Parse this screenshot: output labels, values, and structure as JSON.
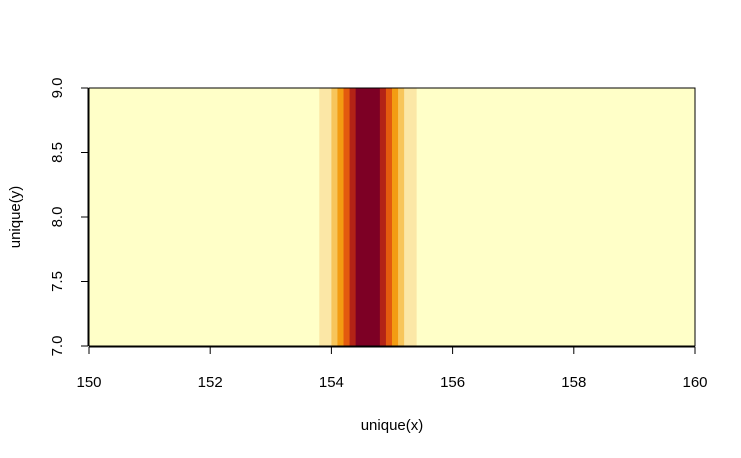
{
  "chart_data": {
    "type": "heatmap",
    "title": "",
    "xlabel": "unique(x)",
    "ylabel": "unique(y)",
    "xlim": [
      150,
      160
    ],
    "ylim": [
      7,
      9
    ],
    "x_ticks": [
      "150",
      "152",
      "154",
      "156",
      "158",
      "160"
    ],
    "y_ticks": [
      "7.0",
      "7.5",
      "8.0",
      "8.5",
      "9.0"
    ],
    "grid": false,
    "legend": "none",
    "background_color": "#FFFFC8",
    "bands": [
      {
        "x0": 153.8,
        "x1": 154.0,
        "color": "#FBE7A6"
      },
      {
        "x0": 154.0,
        "x1": 154.1,
        "color": "#F7C55A"
      },
      {
        "x0": 154.1,
        "x1": 154.2,
        "color": "#F39C12"
      },
      {
        "x0": 154.2,
        "x1": 154.3,
        "color": "#E35A0E"
      },
      {
        "x0": 154.3,
        "x1": 154.4,
        "color": "#B32316"
      },
      {
        "x0": 154.4,
        "x1": 154.8,
        "color": "#7D0025"
      },
      {
        "x0": 154.8,
        "x1": 154.9,
        "color": "#B32316"
      },
      {
        "x0": 154.9,
        "x1": 155.0,
        "color": "#E35A0E"
      },
      {
        "x0": 155.0,
        "x1": 155.1,
        "color": "#F39C12"
      },
      {
        "x0": 155.1,
        "x1": 155.2,
        "color": "#F7C55A"
      },
      {
        "x0": 155.2,
        "x1": 155.4,
        "color": "#FBE7A6"
      }
    ]
  }
}
